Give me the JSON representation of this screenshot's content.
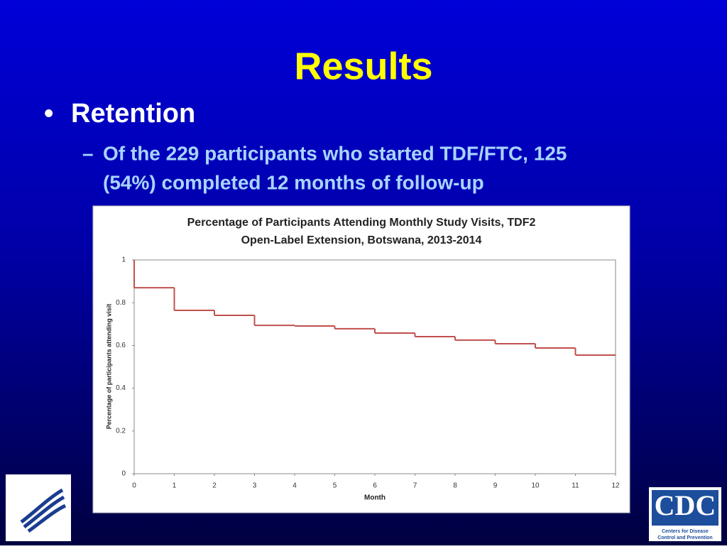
{
  "slide": {
    "title": "Results",
    "bullet": "Retention",
    "sub_bullet_lines": [
      "Of the 229 participants who started TDF/FTC, 125",
      "(54%) completed 12 months of follow-up"
    ],
    "logos": {
      "cdc": "CDC",
      "cdc_caption_lines": [
        "Centers for Disease",
        "Control and Prevention"
      ]
    }
  },
  "chart_data": {
    "type": "step",
    "title_lines": [
      "Percentage of Participants Attending Monthly Study Visits, TDF2",
      "Open-Label Extension, Botswana, 2013-2014"
    ],
    "x_label": "Month",
    "y_label": "Percentage of participants attending visit",
    "x": [
      0,
      0,
      1,
      2,
      3,
      4,
      5,
      6,
      7,
      8,
      9,
      10,
      11
    ],
    "values": [
      1,
      0.87,
      0.764,
      0.741,
      0.694,
      0.691,
      0.678,
      0.658,
      0.641,
      0.625,
      0.608,
      0.588,
      0.555
    ],
    "color": "#c0504d",
    "xlim": [
      0,
      12
    ],
    "xticks": [
      0,
      1,
      2,
      3,
      4,
      5,
      6,
      7,
      8,
      9,
      10,
      11,
      12
    ],
    "ylim": [
      0,
      1
    ],
    "yticks": [
      0,
      0.2,
      0.4,
      0.6,
      0.8,
      1
    ],
    "grid": false
  }
}
